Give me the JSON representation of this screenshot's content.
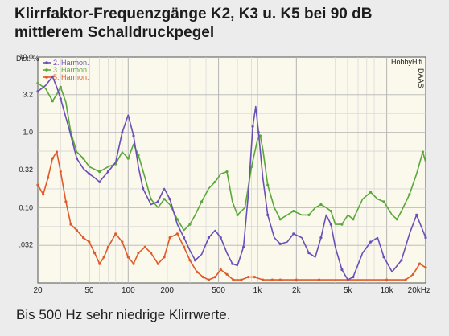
{
  "header": {
    "title_line1": "Klirrfaktor-Frequenzgänge K2, K3 u. K5 bei 90 dB",
    "title_line2": "mittlerem Schalldruckpegel"
  },
  "caption": "Bis 500 Hz sehr niedrige Klirrwerte.",
  "chart_data": {
    "type": "line",
    "x_scale": "log",
    "y_scale": "log",
    "ylabel": "Dist. %",
    "xlim": [
      20,
      20000
    ],
    "ylim": [
      0.01,
      10
    ],
    "x_ticks": [
      20,
      50,
      100,
      200,
      500,
      1000,
      2000,
      5000,
      10000,
      20000
    ],
    "x_tick_labels": [
      "20",
      "50",
      "100",
      "200",
      "500",
      "1k",
      "2k",
      "5k",
      "10k",
      "20kHz"
    ],
    "y_ticks": [
      10,
      3.2,
      1,
      0.32,
      0.1,
      0.032
    ],
    "y_tick_labels": [
      "10.0",
      "3.2",
      "1.0",
      "0.32",
      "0.10",
      ".032"
    ],
    "grid": true,
    "legend_position": "top-left",
    "brand": "HobbyHifi",
    "side_text": "DAAS",
    "series": [
      {
        "name": "2. Harmon.",
        "color": "#6a4fb8",
        "points": [
          [
            20,
            3.5
          ],
          [
            23,
            4.2
          ],
          [
            26,
            5.5
          ],
          [
            28,
            4.0
          ],
          [
            30,
            2.8
          ],
          [
            35,
            1.1
          ],
          [
            40,
            0.45
          ],
          [
            45,
            0.33
          ],
          [
            50,
            0.28
          ],
          [
            55,
            0.25
          ],
          [
            60,
            0.22
          ],
          [
            65,
            0.26
          ],
          [
            70,
            0.3
          ],
          [
            80,
            0.4
          ],
          [
            90,
            1.0
          ],
          [
            100,
            1.7
          ],
          [
            110,
            0.9
          ],
          [
            120,
            0.35
          ],
          [
            130,
            0.18
          ],
          [
            150,
            0.11
          ],
          [
            170,
            0.12
          ],
          [
            190,
            0.18
          ],
          [
            210,
            0.13
          ],
          [
            240,
            0.06
          ],
          [
            270,
            0.04
          ],
          [
            300,
            0.027
          ],
          [
            330,
            0.02
          ],
          [
            370,
            0.024
          ],
          [
            420,
            0.04
          ],
          [
            470,
            0.05
          ],
          [
            520,
            0.04
          ],
          [
            580,
            0.025
          ],
          [
            640,
            0.018
          ],
          [
            700,
            0.017
          ],
          [
            780,
            0.03
          ],
          [
            850,
            0.15
          ],
          [
            920,
            1.2
          ],
          [
            970,
            2.2
          ],
          [
            1020,
            1.0
          ],
          [
            1100,
            0.25
          ],
          [
            1200,
            0.08
          ],
          [
            1350,
            0.04
          ],
          [
            1500,
            0.033
          ],
          [
            1700,
            0.035
          ],
          [
            1900,
            0.045
          ],
          [
            2200,
            0.04
          ],
          [
            2500,
            0.025
          ],
          [
            2800,
            0.022
          ],
          [
            3100,
            0.04
          ],
          [
            3400,
            0.08
          ],
          [
            3700,
            0.06
          ],
          [
            4000,
            0.03
          ],
          [
            4500,
            0.015
          ],
          [
            5000,
            0.011
          ],
          [
            5500,
            0.012
          ],
          [
            6500,
            0.025
          ],
          [
            7500,
            0.035
          ],
          [
            8500,
            0.04
          ],
          [
            9500,
            0.022
          ],
          [
            11000,
            0.014
          ],
          [
            13000,
            0.02
          ],
          [
            15000,
            0.045
          ],
          [
            17000,
            0.08
          ],
          [
            19000,
            0.05
          ],
          [
            20000,
            0.04
          ]
        ]
      },
      {
        "name": "3. Harmon.",
        "color": "#5aa83a",
        "points": [
          [
            20,
            4.5
          ],
          [
            23,
            3.8
          ],
          [
            26,
            2.6
          ],
          [
            28,
            3.2
          ],
          [
            30,
            4.0
          ],
          [
            33,
            2.5
          ],
          [
            36,
            1.0
          ],
          [
            40,
            0.55
          ],
          [
            45,
            0.45
          ],
          [
            50,
            0.35
          ],
          [
            60,
            0.3
          ],
          [
            70,
            0.35
          ],
          [
            80,
            0.38
          ],
          [
            90,
            0.55
          ],
          [
            100,
            0.45
          ],
          [
            110,
            0.7
          ],
          [
            120,
            0.5
          ],
          [
            135,
            0.25
          ],
          [
            150,
            0.13
          ],
          [
            170,
            0.1
          ],
          [
            190,
            0.13
          ],
          [
            210,
            0.11
          ],
          [
            240,
            0.07
          ],
          [
            270,
            0.05
          ],
          [
            300,
            0.06
          ],
          [
            330,
            0.08
          ],
          [
            370,
            0.12
          ],
          [
            420,
            0.18
          ],
          [
            470,
            0.22
          ],
          [
            520,
            0.28
          ],
          [
            580,
            0.3
          ],
          [
            640,
            0.12
          ],
          [
            700,
            0.08
          ],
          [
            800,
            0.1
          ],
          [
            900,
            0.35
          ],
          [
            1000,
            0.8
          ],
          [
            1050,
            0.9
          ],
          [
            1100,
            0.6
          ],
          [
            1200,
            0.2
          ],
          [
            1350,
            0.1
          ],
          [
            1500,
            0.07
          ],
          [
            1700,
            0.08
          ],
          [
            1900,
            0.09
          ],
          [
            2200,
            0.08
          ],
          [
            2500,
            0.08
          ],
          [
            2800,
            0.1
          ],
          [
            3100,
            0.11
          ],
          [
            3400,
            0.1
          ],
          [
            3700,
            0.09
          ],
          [
            4000,
            0.06
          ],
          [
            4500,
            0.06
          ],
          [
            5000,
            0.08
          ],
          [
            5500,
            0.07
          ],
          [
            6500,
            0.13
          ],
          [
            7500,
            0.16
          ],
          [
            8500,
            0.13
          ],
          [
            9500,
            0.12
          ],
          [
            11000,
            0.08
          ],
          [
            12000,
            0.07
          ],
          [
            13000,
            0.09
          ],
          [
            15000,
            0.15
          ],
          [
            17000,
            0.28
          ],
          [
            19000,
            0.55
          ],
          [
            20000,
            0.4
          ]
        ]
      },
      {
        "name": "5. Harmon.",
        "color": "#e05a28",
        "points": [
          [
            20,
            0.2
          ],
          [
            22,
            0.15
          ],
          [
            24,
            0.25
          ],
          [
            26,
            0.45
          ],
          [
            28,
            0.55
          ],
          [
            30,
            0.3
          ],
          [
            33,
            0.12
          ],
          [
            36,
            0.06
          ],
          [
            40,
            0.05
          ],
          [
            45,
            0.04
          ],
          [
            50,
            0.035
          ],
          [
            55,
            0.025
          ],
          [
            60,
            0.018
          ],
          [
            65,
            0.022
          ],
          [
            70,
            0.03
          ],
          [
            80,
            0.045
          ],
          [
            90,
            0.035
          ],
          [
            100,
            0.022
          ],
          [
            110,
            0.018
          ],
          [
            120,
            0.025
          ],
          [
            135,
            0.03
          ],
          [
            150,
            0.025
          ],
          [
            170,
            0.018
          ],
          [
            190,
            0.022
          ],
          [
            210,
            0.04
          ],
          [
            240,
            0.045
          ],
          [
            270,
            0.03
          ],
          [
            300,
            0.02
          ],
          [
            340,
            0.014
          ],
          [
            380,
            0.012
          ],
          [
            420,
            0.011
          ],
          [
            470,
            0.012
          ],
          [
            520,
            0.015
          ],
          [
            580,
            0.013
          ],
          [
            650,
            0.011
          ],
          [
            750,
            0.011
          ],
          [
            850,
            0.012
          ],
          [
            950,
            0.012
          ],
          [
            1100,
            0.011
          ],
          [
            1300,
            0.011
          ],
          [
            1500,
            0.011
          ],
          [
            2000,
            0.011
          ],
          [
            3000,
            0.011
          ],
          [
            5000,
            0.011
          ],
          [
            10000,
            0.011
          ],
          [
            14000,
            0.011
          ],
          [
            16000,
            0.013
          ],
          [
            18000,
            0.018
          ],
          [
            20000,
            0.016
          ]
        ]
      }
    ]
  }
}
